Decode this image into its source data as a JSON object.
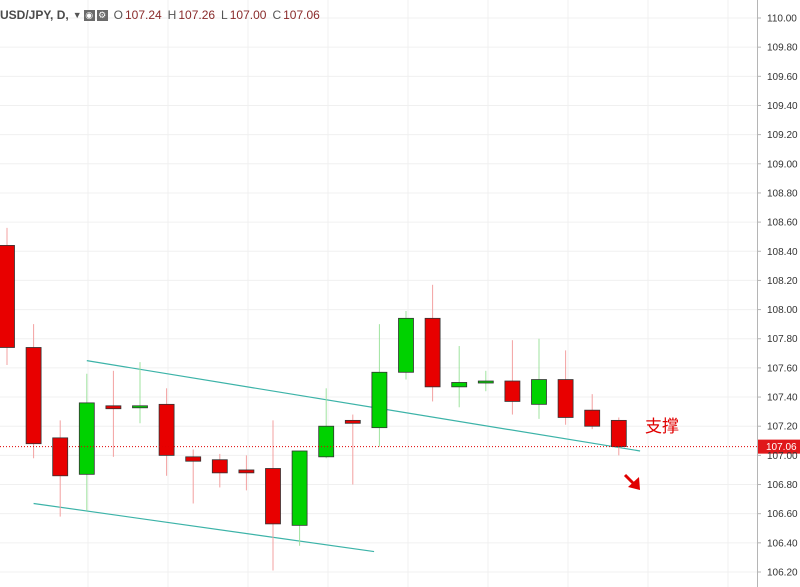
{
  "legend": {
    "symbol": "USD/JPY, D,",
    "open_label": "O",
    "open_value": "107.24",
    "high_label": "H",
    "high_value": "107.26",
    "low_label": "L",
    "low_value": "107.00",
    "close_label": "C",
    "close_value": "107.06"
  },
  "annotation": {
    "support_text": "支撑"
  },
  "current_price_label": "107.06",
  "colors": {
    "up": "#00d200",
    "down": "#e80000",
    "trendline": "#3cb3a8",
    "price_line": "#e00000"
  },
  "chart_data": {
    "type": "candlestick",
    "symbol": "USD/JPY",
    "timeframe": "D",
    "ylim": [
      106.2,
      110.0
    ],
    "y_ticks": [
      "106.20",
      "106.40",
      "106.60",
      "106.80",
      "107.00",
      "107.20",
      "107.40",
      "107.60",
      "107.80",
      "108.00",
      "108.20",
      "108.40",
      "108.60",
      "108.80",
      "109.00",
      "109.20",
      "109.40",
      "109.60",
      "109.80",
      "110.00"
    ],
    "candles": [
      {
        "o": 108.44,
        "h": 108.56,
        "l": 107.62,
        "c": 107.74
      },
      {
        "o": 107.74,
        "h": 107.9,
        "l": 106.98,
        "c": 107.08
      },
      {
        "o": 107.12,
        "h": 107.24,
        "l": 106.58,
        "c": 106.86
      },
      {
        "o": 106.87,
        "h": 107.56,
        "l": 106.62,
        "c": 107.36
      },
      {
        "o": 107.34,
        "h": 107.58,
        "l": 106.99,
        "c": 107.32
      },
      {
        "o": 107.33,
        "h": 107.64,
        "l": 107.22,
        "c": 107.34
      },
      {
        "o": 107.35,
        "h": 107.46,
        "l": 106.86,
        "c": 107.0
      },
      {
        "o": 106.99,
        "h": 107.04,
        "l": 106.67,
        "c": 106.96
      },
      {
        "o": 106.97,
        "h": 107.01,
        "l": 106.78,
        "c": 106.88
      },
      {
        "o": 106.9,
        "h": 107.0,
        "l": 106.76,
        "c": 106.88
      },
      {
        "o": 106.91,
        "h": 107.24,
        "l": 106.21,
        "c": 106.53
      },
      {
        "o": 106.52,
        "h": 107.03,
        "l": 106.38,
        "c": 107.03
      },
      {
        "o": 106.99,
        "h": 107.46,
        "l": 106.98,
        "c": 107.2
      },
      {
        "o": 107.24,
        "h": 107.28,
        "l": 106.8,
        "c": 107.22
      },
      {
        "o": 107.19,
        "h": 107.9,
        "l": 107.06,
        "c": 107.57
      },
      {
        "o": 107.57,
        "h": 107.99,
        "l": 107.52,
        "c": 107.94
      },
      {
        "o": 107.94,
        "h": 108.17,
        "l": 107.37,
        "c": 107.47
      },
      {
        "o": 107.47,
        "h": 107.75,
        "l": 107.33,
        "c": 107.5
      },
      {
        "o": 107.5,
        "h": 107.58,
        "l": 107.44,
        "c": 107.51
      },
      {
        "o": 107.51,
        "h": 107.79,
        "l": 107.28,
        "c": 107.37
      },
      {
        "o": 107.35,
        "h": 107.8,
        "l": 107.25,
        "c": 107.52
      },
      {
        "o": 107.52,
        "h": 107.72,
        "l": 107.21,
        "c": 107.26
      },
      {
        "o": 107.31,
        "h": 107.42,
        "l": 107.18,
        "c": 107.2
      },
      {
        "o": 107.24,
        "h": 107.26,
        "l": 107.0,
        "c": 107.06
      }
    ],
    "trendlines": [
      {
        "from": {
          "i": 3,
          "price": 107.65
        },
        "to": {
          "i": 23.8,
          "price": 107.03
        }
      },
      {
        "from": {
          "i": 1,
          "price": 106.67
        },
        "to": {
          "i": 13.8,
          "price": 106.34
        }
      }
    ],
    "current_price": 107.06
  }
}
